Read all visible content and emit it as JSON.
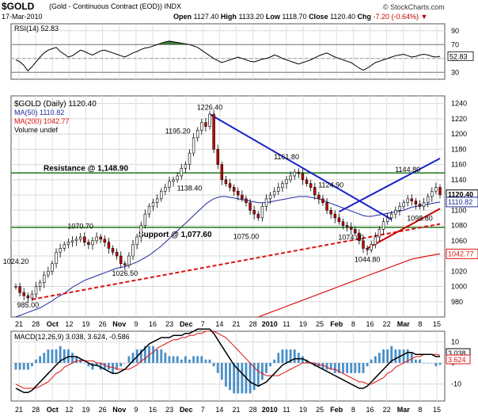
{
  "header": {
    "symbol": "$GOLD",
    "name": "(Gold - Continuous Contract (EOD)) INDX",
    "date": "17-Mar-2010",
    "open_label": "Open",
    "open": "1127.40",
    "high_label": "High",
    "high": "1133.20",
    "low_label": "Low",
    "low": "1118.70",
    "close_label": "Close",
    "close": "1120.40",
    "chg_label": "Chg",
    "chg": "-7.20 (-0.64%)",
    "brand": "© StockCharts.com"
  },
  "colors": {
    "up": "#ffffff",
    "down": "#cc0000",
    "ma50": "#1f2b9e",
    "ma200": "#dd1111",
    "trend": "#1b22c8",
    "sr": "#1a7a1a",
    "support_dash": "#dd1111",
    "macd": "#000000",
    "signal": "#dd1111",
    "hist": "#4a90c8",
    "rsi": "#000000",
    "rsi_fill": "#3d7a3d"
  },
  "chart_data": [
    {
      "type": "line",
      "panel": "RSI",
      "title": "RSI(14) 52.83",
      "y_ticks": [
        90,
        70,
        50,
        30
      ],
      "ylim": [
        20,
        100
      ],
      "last_value": "52.83",
      "values": [
        48,
        45,
        40,
        32,
        38,
        45,
        52,
        58,
        62,
        64,
        66,
        60,
        56,
        52,
        54,
        58,
        62,
        60,
        57,
        55,
        58,
        61,
        62,
        60,
        58,
        56,
        54,
        52,
        55,
        58,
        60,
        63,
        65,
        66,
        68,
        70,
        72,
        74,
        75,
        74,
        73,
        72,
        71,
        70,
        68,
        66,
        62,
        58,
        54,
        50,
        47,
        44,
        46,
        48,
        50,
        52,
        50,
        48,
        46,
        45,
        47,
        49,
        50,
        52,
        55,
        53,
        50,
        48,
        46,
        44,
        42,
        44,
        46,
        48,
        51,
        54,
        56,
        58,
        55,
        52,
        50,
        48,
        46,
        44,
        40,
        36,
        33,
        36,
        40,
        44,
        46,
        48,
        50,
        52,
        54,
        55,
        56,
        54,
        52,
        53,
        55,
        56,
        55,
        53,
        52,
        53
      ]
    },
    {
      "type": "candlestick",
      "panel": "Price",
      "legend": [
        {
          "text": "$GOLD (Daily) 1120.40",
          "color": "#000000"
        },
        {
          "text": "MA(50) 1110.82",
          "color": "#1f2b9e"
        },
        {
          "text": "MA(200) 1042.77",
          "color": "#dd1111"
        },
        {
          "text": "Volume undef",
          "color": "#000000"
        }
      ],
      "y_ticks": [
        980,
        1000,
        1020,
        1040,
        1060,
        1080,
        1100,
        1120,
        1140,
        1160,
        1180,
        1200,
        1220,
        1240
      ],
      "ylim": [
        960,
        1250
      ],
      "x_ticks": [
        "21",
        "28",
        "Oct",
        "12",
        "19",
        "26",
        "Nov",
        "9",
        "16",
        "23",
        "Dec",
        "7",
        "14",
        "21",
        "28",
        "2010",
        "11",
        "19",
        "25",
        "Feb",
        "8",
        "16",
        "22",
        "Mar",
        "8",
        "15"
      ],
      "close": [
        1000,
        992,
        988,
        985,
        990,
        1000,
        1005,
        1015,
        1020,
        1030,
        1045,
        1050,
        1055,
        1058,
        1060,
        1062,
        1065,
        1058,
        1055,
        1060,
        1065,
        1062,
        1058,
        1050,
        1045,
        1040,
        1030,
        1028,
        1040,
        1055,
        1065,
        1080,
        1095,
        1105,
        1110,
        1115,
        1125,
        1130,
        1138,
        1140,
        1145,
        1155,
        1160,
        1175,
        1195,
        1205,
        1215,
        1210,
        1226,
        1180,
        1160,
        1140,
        1135,
        1130,
        1125,
        1120,
        1115,
        1110,
        1100,
        1095,
        1090,
        1105,
        1115,
        1120,
        1125,
        1130,
        1135,
        1140,
        1145,
        1150,
        1148,
        1140,
        1135,
        1130,
        1120,
        1115,
        1110,
        1100,
        1095,
        1090,
        1085,
        1080,
        1078,
        1075,
        1070,
        1060,
        1050,
        1048,
        1055,
        1065,
        1075,
        1085,
        1090,
        1095,
        1100,
        1105,
        1110,
        1115,
        1112,
        1108,
        1105,
        1110,
        1118,
        1125,
        1130,
        1120.4
      ],
      "ma50": [
        960,
        962,
        964,
        966,
        968,
        970,
        972,
        975,
        978,
        981,
        985,
        988,
        991,
        995,
        999,
        1002,
        1005,
        1008,
        1010,
        1012,
        1014,
        1016,
        1018,
        1020,
        1022,
        1024,
        1025,
        1026,
        1028,
        1030,
        1032,
        1035,
        1038,
        1041,
        1045,
        1049,
        1053,
        1058,
        1063,
        1068,
        1073,
        1078,
        1083,
        1088,
        1093,
        1098,
        1103,
        1108,
        1112,
        1115,
        1117,
        1118,
        1118,
        1117,
        1116,
        1115,
        1114,
        1113,
        1112,
        1111,
        1110,
        1110,
        1110,
        1111,
        1112,
        1113,
        1114,
        1115,
        1116,
        1117,
        1118,
        1118,
        1118,
        1117,
        1116,
        1115,
        1113,
        1111,
        1109,
        1107,
        1105,
        1103,
        1101,
        1099,
        1097,
        1095,
        1093,
        1092,
        1092,
        1093,
        1094,
        1095,
        1096,
        1097,
        1098,
        1099,
        1100,
        1102,
        1104,
        1105,
        1106,
        1107,
        1108,
        1109,
        1110,
        1110.82
      ],
      "ma200": [
        null,
        null,
        null,
        null,
        null,
        null,
        null,
        null,
        null,
        null,
        null,
        null,
        null,
        null,
        null,
        null,
        null,
        null,
        null,
        null,
        null,
        null,
        null,
        null,
        null,
        null,
        null,
        null,
        null,
        null,
        null,
        null,
        null,
        null,
        null,
        null,
        null,
        null,
        null,
        null,
        null,
        null,
        null,
        null,
        null,
        null,
        null,
        null,
        null,
        null,
        null,
        null,
        null,
        null,
        null,
        null,
        null,
        null,
        null,
        null,
        960,
        962,
        964,
        966,
        968,
        970,
        972,
        974,
        976,
        978,
        980,
        982,
        984,
        986,
        988,
        990,
        992,
        994,
        996,
        998,
        1000,
        1002,
        1004,
        1006,
        1008,
        1010,
        1012,
        1014,
        1016,
        1018,
        1020,
        1022,
        1024,
        1026,
        1028,
        1030,
        1032,
        1034,
        1036,
        1037,
        1038,
        1039,
        1040,
        1041,
        1042,
        1042.77
      ],
      "last_ma50": "1110.82",
      "last_ma200": "1042.77",
      "last_close": "1120.40",
      "resistance": {
        "label": "Resistance @ 1,148.90",
        "value": 1148.9
      },
      "support": {
        "label": "Support @ 1,077.60",
        "value": 1077.6
      },
      "annotations": [
        {
          "text": "1226.40",
          "i": 48,
          "v": 1226.4,
          "pos": "above"
        },
        {
          "text": "1195.20",
          "i": 44,
          "v": 1195.2,
          "pos": "left"
        },
        {
          "text": "1161.80",
          "i": 67,
          "v": 1161.8,
          "pos": "above"
        },
        {
          "text": "1138.40",
          "i": 43,
          "v": 1138.4,
          "pos": "below"
        },
        {
          "text": "1124.90",
          "i": 78,
          "v": 1124.9,
          "pos": "above"
        },
        {
          "text": "1144.80",
          "i": 97,
          "v": 1144.8,
          "pos": "above"
        },
        {
          "text": "1098.80",
          "i": 100,
          "v": 1098.8,
          "pos": "below"
        },
        {
          "text": "1075.00",
          "i": 57,
          "v": 1075.0,
          "pos": "below"
        },
        {
          "text": "1074.00",
          "i": 83,
          "v": 1074.0,
          "pos": "below"
        },
        {
          "text": "1044.80",
          "i": 87,
          "v": 1044.8,
          "pos": "below"
        },
        {
          "text": "1070.70",
          "i": 16,
          "v": 1070.7,
          "pos": "above"
        },
        {
          "text": "1024.20",
          "i": 0,
          "v": 1024.2,
          "pos": "above"
        },
        {
          "text": "1026.50",
          "i": 27,
          "v": 1026.5,
          "pos": "below"
        },
        {
          "text": "985.00",
          "i": 3,
          "v": 985.0,
          "pos": "below"
        }
      ]
    },
    {
      "type": "line",
      "panel": "MACD",
      "title": "MACD(12,26,9) 3.038, 3.624, -0.586",
      "y_ticks": [
        10,
        0,
        -10
      ],
      "ylim": [
        -18,
        15
      ],
      "last_macd": "3.038",
      "last_signal": "3.624",
      "macd": [
        -12,
        -13,
        -14,
        -14,
        -13,
        -11,
        -9,
        -7,
        -5,
        -3,
        -1,
        1,
        2,
        3,
        3,
        3,
        2,
        1,
        0,
        -1,
        -1,
        -2,
        -3,
        -4,
        -5,
        -5,
        -4,
        -3,
        -1,
        1,
        3,
        5,
        7,
        9,
        10,
        11,
        12,
        12,
        12,
        13,
        13,
        13,
        14,
        14,
        15,
        16,
        16,
        16,
        16,
        14,
        11,
        8,
        5,
        2,
        -1,
        -3,
        -5,
        -7,
        -9,
        -10,
        -11,
        -10,
        -9,
        -7,
        -5,
        -3,
        -1,
        0,
        1,
        2,
        2,
        2,
        1,
        0,
        -1,
        -2,
        -3,
        -4,
        -5,
        -6,
        -7,
        -8,
        -9,
        -10,
        -11,
        -12,
        -12,
        -11,
        -9,
        -7,
        -5,
        -3,
        -1,
        1,
        2,
        3,
        4,
        5,
        5,
        4,
        4,
        4,
        4,
        4,
        3,
        3.038
      ],
      "signal": [
        -10,
        -11,
        -12,
        -12,
        -12,
        -12,
        -11,
        -10,
        -9,
        -7,
        -5,
        -4,
        -2,
        -1,
        0,
        1,
        1,
        1,
        1,
        1,
        0,
        0,
        -1,
        -2,
        -2,
        -3,
        -3,
        -3,
        -3,
        -2,
        -1,
        1,
        2,
        4,
        5,
        7,
        8,
        9,
        10,
        11,
        11,
        12,
        12,
        13,
        13,
        14,
        14,
        15,
        15,
        15,
        14,
        13,
        12,
        10,
        8,
        6,
        4,
        2,
        0,
        -2,
        -4,
        -5,
        -6,
        -6,
        -6,
        -6,
        -5,
        -4,
        -3,
        -2,
        -1,
        0,
        0,
        0,
        0,
        -1,
        -1,
        -2,
        -3,
        -3,
        -4,
        -5,
        -6,
        -7,
        -8,
        -9,
        -9,
        -10,
        -10,
        -9,
        -8,
        -7,
        -5,
        -4,
        -2,
        -1,
        0,
        1,
        2,
        3,
        3,
        4,
        4,
        4,
        4,
        3.624
      ],
      "x_ticks": [
        "21",
        "28",
        "Oct",
        "12",
        "19",
        "26",
        "Nov",
        "9",
        "16",
        "23",
        "Dec",
        "7",
        "14",
        "21",
        "28",
        "2010",
        "11",
        "19",
        "25",
        "Feb",
        "8",
        "16",
        "22",
        "Mar",
        "8",
        "15"
      ]
    }
  ]
}
